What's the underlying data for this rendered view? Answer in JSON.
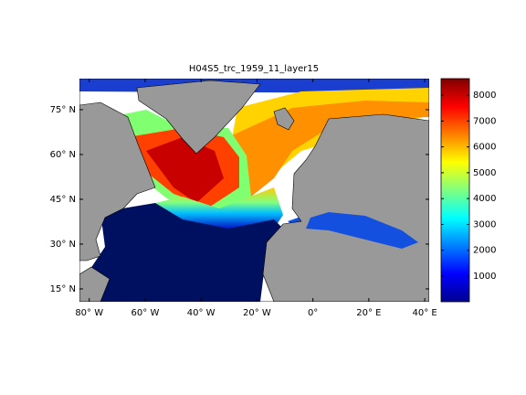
{
  "map": {
    "title": "H04S5_trc_1959_11_layer15",
    "xlim": [
      -83.5,
      41.6
    ],
    "ylim": [
      10.7,
      85.4
    ],
    "xticks": [
      {
        "value": -80,
        "label": "80° W"
      },
      {
        "value": -60,
        "label": "60° W"
      },
      {
        "value": -40,
        "label": "40° W"
      },
      {
        "value": -20,
        "label": "20° W"
      },
      {
        "value": 0,
        "label": "0°"
      },
      {
        "value": 20,
        "label": "20° E"
      },
      {
        "value": 40,
        "label": "40° E"
      }
    ],
    "yticks": [
      {
        "value": 15,
        "label": "15° N"
      },
      {
        "value": 30,
        "label": "30° N"
      },
      {
        "value": 45,
        "label": "45° N"
      },
      {
        "value": 60,
        "label": "60° N"
      },
      {
        "value": 75,
        "label": "75° N"
      }
    ],
    "colorbar": {
      "clim": [
        10,
        8640
      ],
      "ticks": [
        1000,
        2000,
        3000,
        4000,
        5000,
        6000,
        7000,
        8000
      ]
    }
  }
}
